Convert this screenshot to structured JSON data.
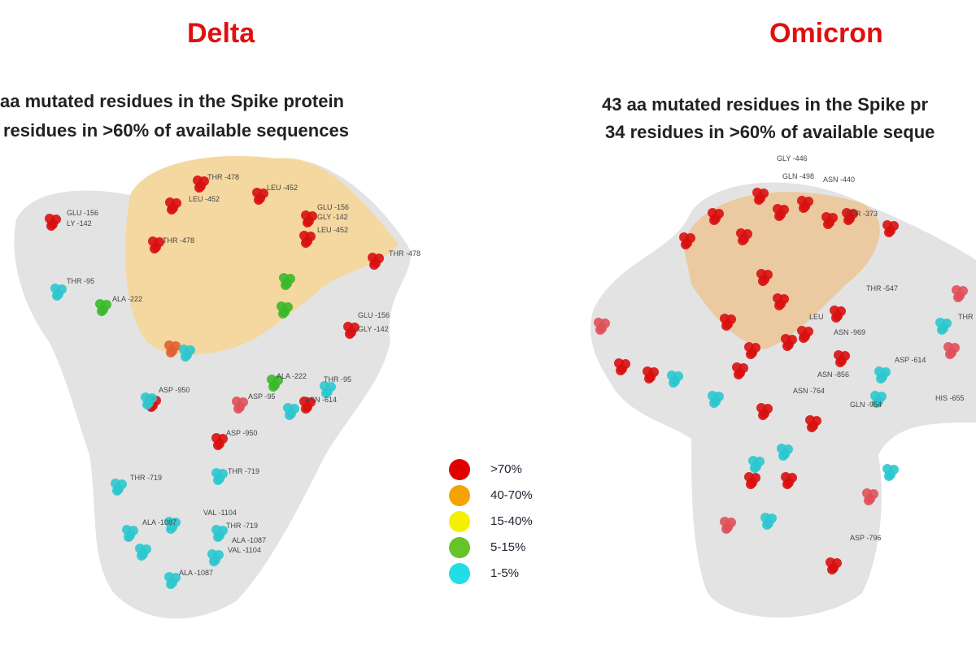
{
  "left_panel": {
    "title": "Delta",
    "subtitle_line1": "aa mutated residues in the Spike protein",
    "subtitle_line2": "residues in >60% of available sequences",
    "labels": [
      "THR -478",
      "LEU -452",
      "LEU -452",
      "GLU -156",
      "LY -142",
      "THR -478",
      "GLU -156",
      "GLY -142",
      "LEU -452",
      "THR -478",
      "THR -95",
      "ALA -222",
      "GLU -156",
      "GLY -142",
      "ALA -222",
      "THR -95",
      "ASP -950",
      "ASP -95",
      "ASN -614",
      "ASP -950",
      "THR -719",
      "THR -719",
      "VAL -1104",
      "ALA -1087",
      "THR -719",
      "ALA -1087",
      "VAL -1104",
      "ALA -1087"
    ]
  },
  "right_panel": {
    "title": "Omicron",
    "subtitle_line1": "43 aa mutated residues in the Spike pr",
    "subtitle_line2": "34 residues in >60% of available seque",
    "labels": [
      "GLY -446",
      "GLN -498",
      "ASN -440",
      "SER -373",
      "THR -547",
      "LEU",
      "ASN -969",
      "ASP -614",
      "ASN -856",
      "ASN -764",
      "GLN -954",
      "HIS -655",
      "ASP -796",
      "THR"
    ]
  },
  "legend": {
    "items": [
      {
        "label": ">70%",
        "color": "#e00000"
      },
      {
        "label": "40-70%",
        "color": "#f5a300"
      },
      {
        "label": "15-40%",
        "color": "#f5f000"
      },
      {
        "label": "5-15%",
        "color": "#66c32a"
      },
      {
        "label": "1-5%",
        "color": "#22dde6"
      }
    ]
  },
  "colors": {
    "title": "#e01010",
    "protein": "#d9d9d9",
    "rbd_delta": "#f7d58f",
    "rbd_omicron": "#f2b56b"
  }
}
